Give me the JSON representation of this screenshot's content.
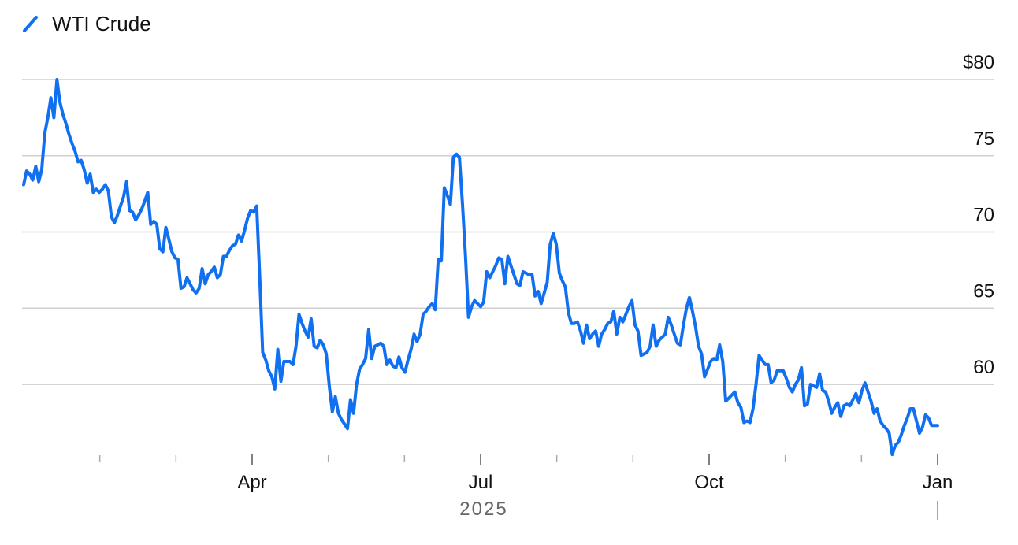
{
  "chart_data": {
    "type": "line",
    "series": [
      {
        "name": "WTI Crude",
        "color": "#1070f0",
        "values": [
          73.1,
          74.0,
          73.8,
          73.4,
          74.3,
          73.3,
          74.1,
          76.5,
          77.5,
          78.8,
          77.5,
          80.0,
          78.5,
          77.7,
          77.1,
          76.4,
          75.8,
          75.3,
          74.6,
          74.7,
          74.1,
          73.2,
          73.8,
          72.6,
          72.8,
          72.6,
          72.8,
          73.1,
          72.7,
          71.0,
          70.6,
          71.1,
          71.7,
          72.3,
          73.3,
          71.4,
          71.3,
          70.8,
          71.1,
          71.5,
          72.0,
          72.6,
          70.5,
          70.7,
          70.5,
          68.9,
          68.7,
          70.3,
          69.5,
          68.7,
          68.3,
          68.2,
          66.3,
          66.4,
          67.0,
          66.6,
          66.2,
          66.0,
          66.3,
          67.6,
          66.6,
          67.2,
          67.4,
          67.7,
          67.0,
          67.2,
          68.4,
          68.4,
          68.8,
          69.1,
          69.2,
          69.8,
          69.4,
          70.1,
          70.9,
          71.4,
          71.3,
          71.7,
          67.1,
          62.1,
          61.6,
          60.9,
          60.5,
          59.7,
          62.3,
          60.2,
          61.5,
          61.5,
          61.5,
          61.3,
          62.5,
          64.6,
          64.0,
          63.5,
          63.1,
          64.3,
          62.5,
          62.4,
          62.9,
          62.6,
          62.0,
          59.9,
          58.2,
          59.2,
          58.1,
          57.7,
          57.4,
          57.1,
          59.0,
          58.1,
          60.0,
          61.0,
          61.3,
          61.7,
          63.6,
          61.7,
          62.5,
          62.6,
          62.7,
          62.5,
          61.3,
          61.6,
          61.2,
          61.1,
          61.8,
          61.1,
          60.8,
          61.6,
          62.3,
          63.3,
          62.8,
          63.3,
          64.6,
          64.8,
          65.1,
          65.3,
          64.9,
          68.2,
          68.1,
          72.9,
          72.4,
          71.8,
          74.9,
          75.1,
          74.9,
          71.8,
          68.4,
          64.4,
          65.1,
          65.5,
          65.3,
          65.1,
          65.4,
          67.4,
          67.0,
          67.4,
          67.8,
          68.3,
          68.2,
          66.6,
          68.4,
          67.8,
          67.2,
          66.6,
          66.5,
          67.4,
          67.3,
          67.2,
          67.2,
          65.8,
          66.1,
          65.3,
          66.0,
          66.7,
          69.2,
          69.9,
          69.2,
          67.3,
          66.8,
          66.4,
          64.7,
          64.0,
          64.0,
          64.1,
          63.5,
          62.7,
          63.9,
          63.0,
          63.3,
          63.5,
          62.5,
          63.3,
          63.6,
          64.0,
          64.1,
          64.8,
          63.3,
          64.4,
          64.1,
          64.6,
          65.1,
          65.5,
          63.9,
          63.5,
          61.9,
          62.0,
          62.1,
          62.5,
          63.9,
          62.5,
          62.9,
          63.1,
          63.3,
          64.4,
          63.9,
          63.3,
          62.7,
          62.6,
          63.9,
          65.0,
          65.7,
          64.8,
          63.8,
          62.5,
          62.0,
          60.5,
          61.0,
          61.5,
          61.7,
          61.6,
          62.6,
          61.5,
          58.9,
          59.1,
          59.3,
          59.5,
          58.8,
          58.5,
          57.5,
          57.6,
          57.5,
          58.4,
          60.0,
          61.9,
          61.6,
          61.3,
          61.3,
          60.1,
          60.3,
          60.9,
          60.9,
          60.9,
          60.4,
          59.8,
          59.5,
          60.0,
          60.3,
          61.1,
          58.6,
          58.7,
          60.0,
          59.9,
          59.8,
          60.7,
          59.6,
          59.5,
          58.9,
          58.1,
          58.5,
          58.8,
          57.9,
          58.6,
          58.7,
          58.6,
          59.0,
          59.4,
          58.8,
          59.6,
          60.1,
          59.5,
          58.9,
          58.1,
          58.4,
          57.6,
          57.3,
          57.1,
          56.8,
          55.4,
          56.0,
          56.2,
          56.7,
          57.3,
          57.8,
          58.4,
          58.4,
          57.6,
          56.8,
          57.2,
          58.0,
          57.8,
          57.3,
          57.3,
          57.3
        ]
      }
    ],
    "xlim": [
      "2025-01",
      "2026-01"
    ],
    "xticks": [
      {
        "value": "2025-04",
        "label": "Apr"
      },
      {
        "value": "2025-07",
        "label": "Jul"
      },
      {
        "value": "2025-10",
        "label": "Oct"
      },
      {
        "value": "2026-01",
        "label": "Jan"
      }
    ],
    "xminor": [
      "2025-02",
      "2025-03",
      "2025-05",
      "2025-06",
      "2025-08",
      "2025-09",
      "2025-11",
      "2025-12"
    ],
    "x_axis_label": "2025",
    "ylim": [
      55.25,
      80
    ],
    "yticks": [
      60,
      65,
      70,
      75,
      {
        "value": 80,
        "label": "$80"
      }
    ],
    "grid": true,
    "legend": "top-left"
  }
}
